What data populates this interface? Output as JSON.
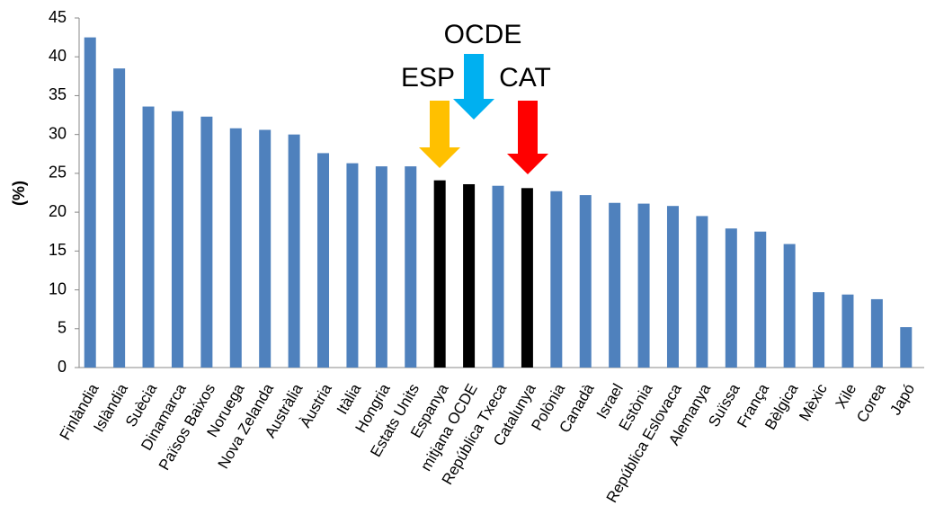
{
  "chart_data": {
    "type": "bar",
    "y_label": "(%)",
    "categories": [
      "Finlàndia",
      "Islàndia",
      "Suècia",
      "Dinamarca",
      "Països Baixos",
      "Noruega",
      "Nova Zelanda",
      "Austràlia",
      "Àustria",
      "Itàlia",
      "Hongria",
      "Estats Units",
      "Espanya",
      "mitjana OCDE",
      "República Txeca",
      "Catalunya",
      "Polònia",
      "Canadà",
      "Israel",
      "Estònia",
      "República Eslovaca",
      "Alemanya",
      "Suïssa",
      "França",
      "Bèlgica",
      "Mèxic",
      "Xile",
      "Corea",
      "Japó"
    ],
    "values": [
      42.5,
      38.5,
      33.6,
      33.0,
      32.3,
      30.8,
      30.6,
      30.0,
      27.6,
      26.3,
      25.9,
      25.9,
      24.1,
      23.6,
      23.4,
      23.1,
      22.7,
      22.2,
      21.2,
      21.1,
      20.8,
      19.5,
      17.9,
      17.5,
      15.9,
      9.7,
      9.4,
      8.8,
      5.2
    ],
    "colors": [
      "#4f81bd",
      "#4f81bd",
      "#4f81bd",
      "#4f81bd",
      "#4f81bd",
      "#4f81bd",
      "#4f81bd",
      "#4f81bd",
      "#4f81bd",
      "#4f81bd",
      "#4f81bd",
      "#4f81bd",
      "#000000",
      "#000000",
      "#4f81bd",
      "#000000",
      "#4f81bd",
      "#4f81bd",
      "#4f81bd",
      "#4f81bd",
      "#4f81bd",
      "#4f81bd",
      "#4f81bd",
      "#4f81bd",
      "#4f81bd",
      "#4f81bd",
      "#4f81bd",
      "#4f81bd",
      "#4f81bd"
    ],
    "ylim": [
      0,
      45
    ],
    "yticks": [
      0,
      5,
      10,
      15,
      20,
      25,
      30,
      35,
      40,
      45
    ],
    "grid": false,
    "annotations": [
      {
        "text": "ESP",
        "color": "#ffc000"
      },
      {
        "text": "OCDE",
        "color": "#00b0f0"
      },
      {
        "text": "CAT",
        "color": "#ff0000"
      }
    ]
  }
}
